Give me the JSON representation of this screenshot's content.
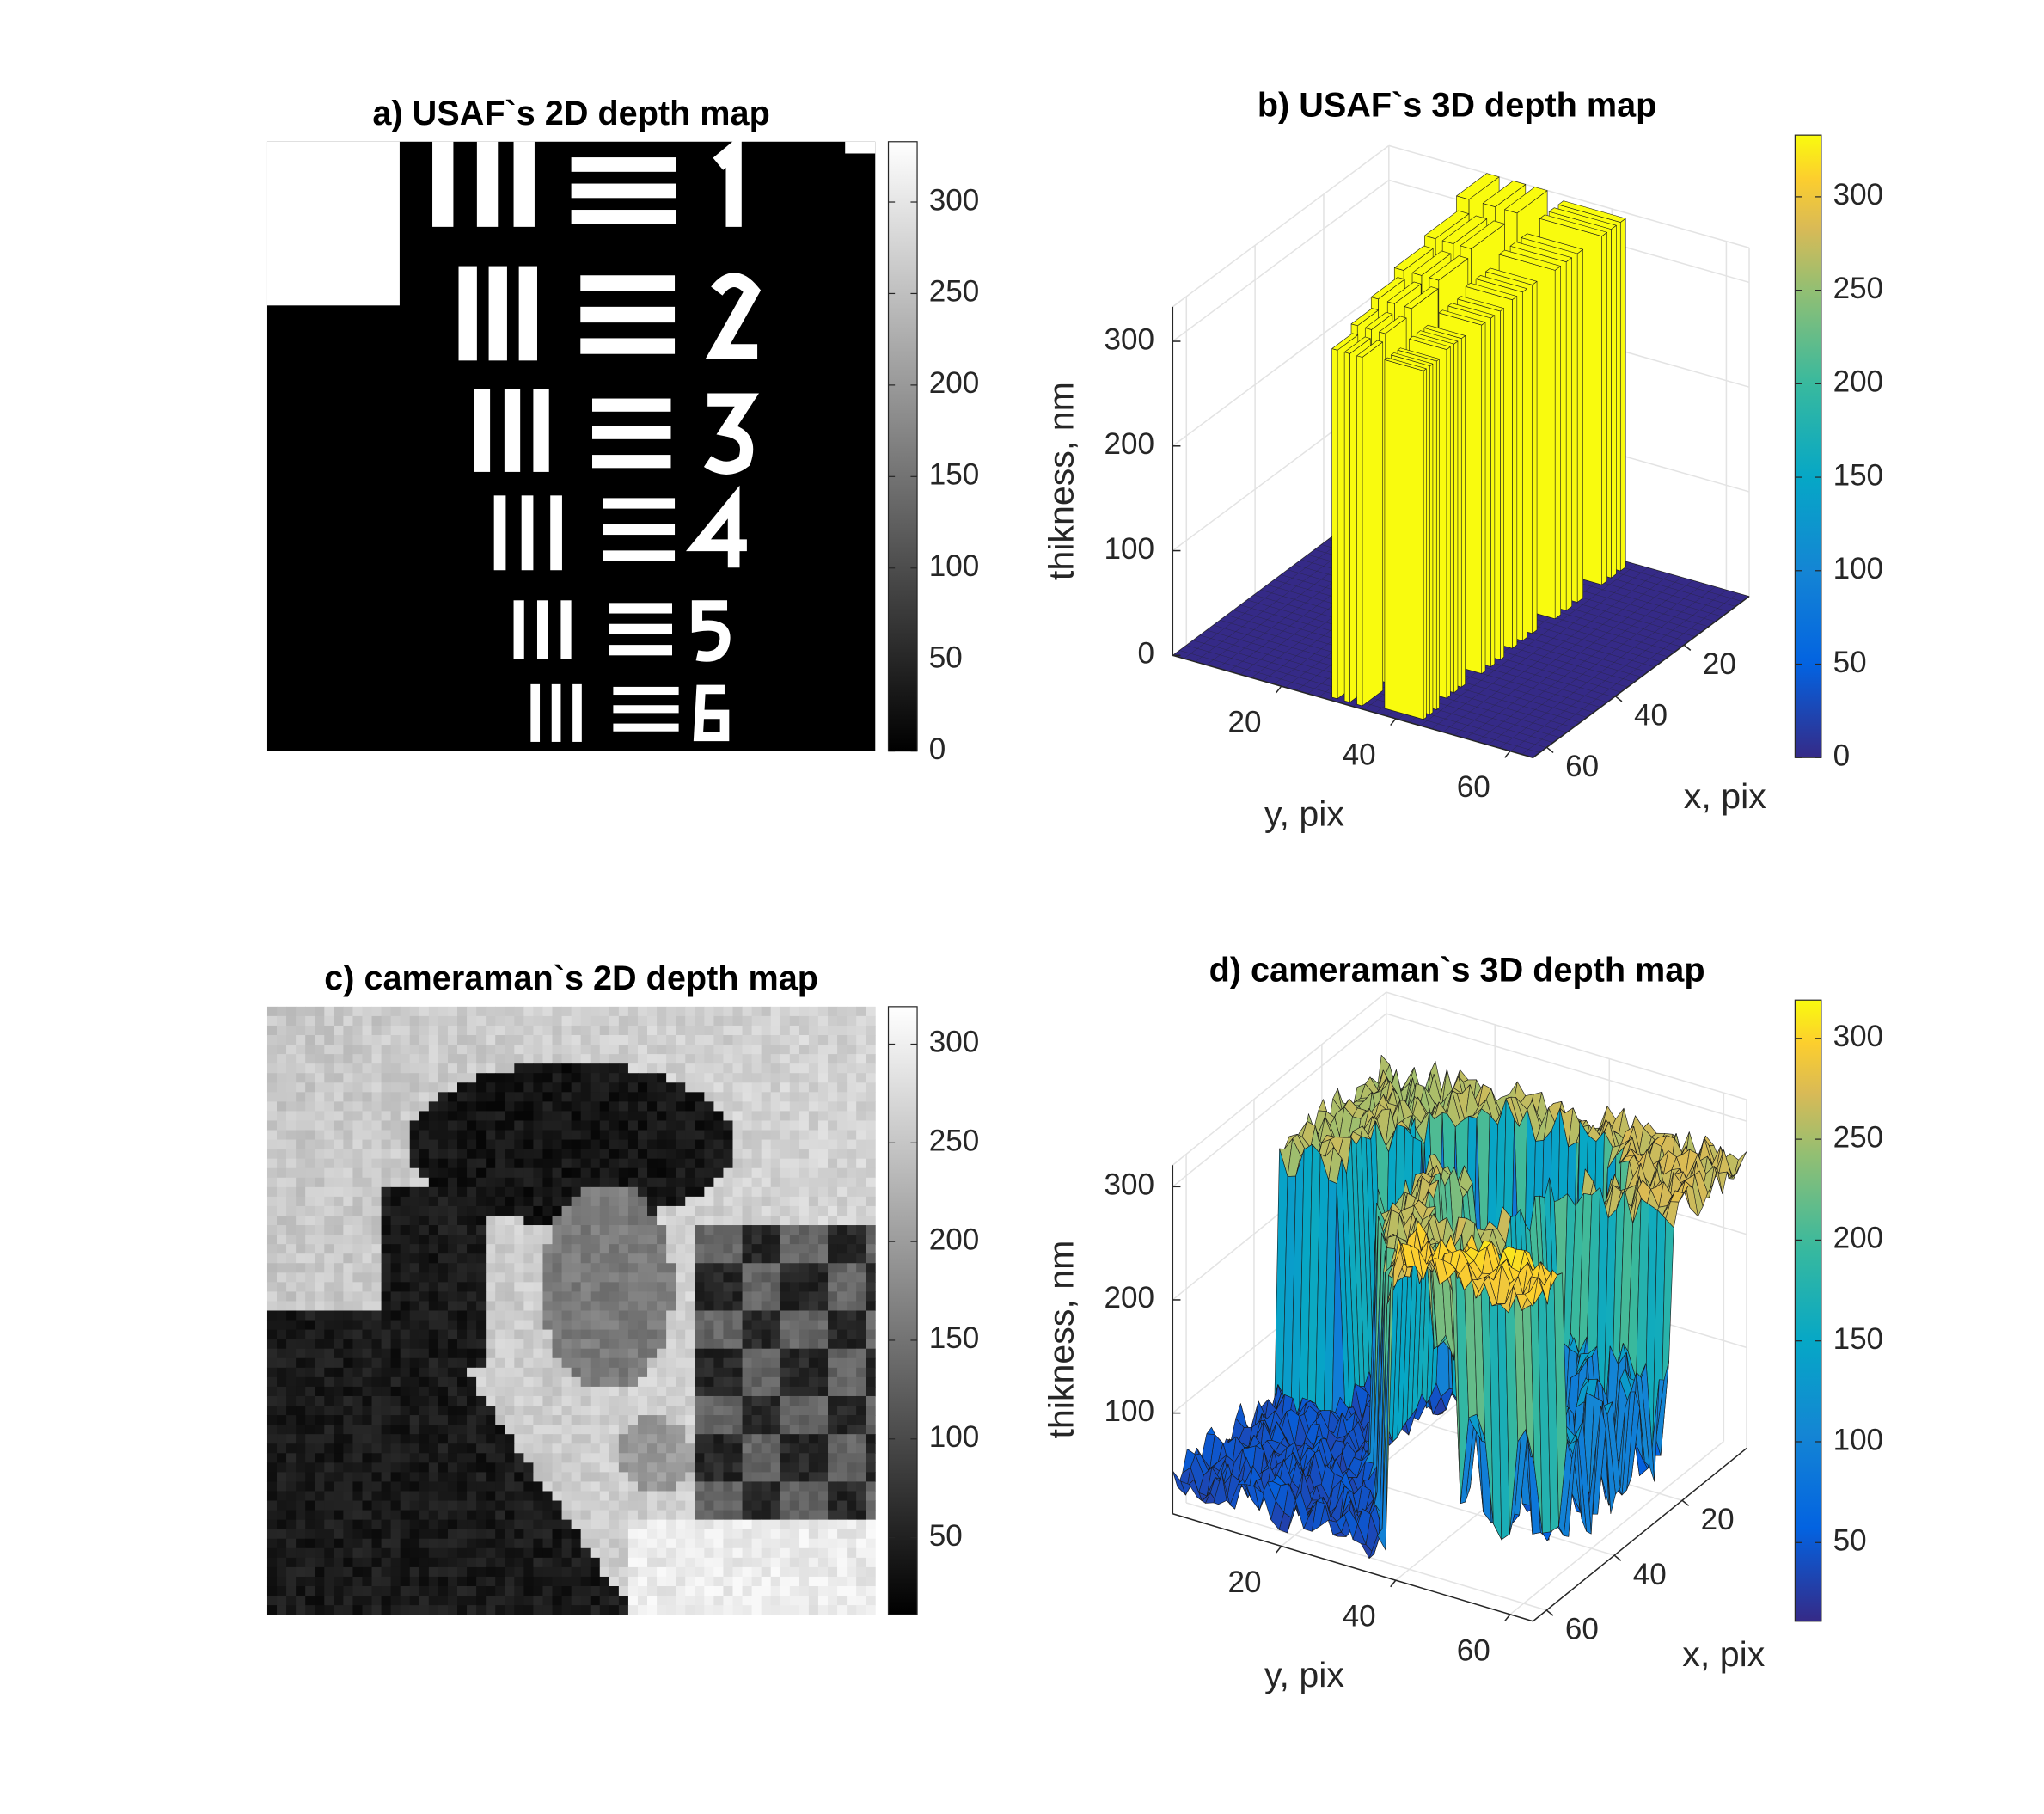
{
  "chart_data": [
    {
      "type": "heatmap",
      "title": "a) USAF`s 2D depth map",
      "colormap": "gray",
      "clim": [
        0,
        333
      ],
      "cticks": [
        0,
        50,
        100,
        150,
        200,
        250,
        300
      ]
    },
    {
      "type": "surface",
      "title": "b) USAF`s 3D depth map",
      "xlabel": "x, pix",
      "ylabel": "y, pix",
      "zlabel": "thikness, nm",
      "xlim": [
        1,
        64
      ],
      "ylim": [
        1,
        64
      ],
      "zlim": [
        0,
        333
      ],
      "xticks": [
        20,
        40,
        60
      ],
      "yticks": [
        20,
        40,
        60
      ],
      "zticks": [
        0,
        100,
        200,
        300
      ],
      "grid": true,
      "colormap": "parula",
      "clim": [
        0,
        333
      ],
      "cticks": [
        0,
        50,
        100,
        150,
        200,
        250,
        300
      ]
    },
    {
      "type": "heatmap",
      "title": "c) cameraman`s 2D depth map",
      "colormap": "gray",
      "clim": [
        11,
        319
      ],
      "cticks": [
        50,
        100,
        150,
        200,
        250,
        300
      ]
    },
    {
      "type": "surface",
      "title": "d) cameraman`s 3D depth map",
      "xlabel": "x, pix",
      "ylabel": "y, pix",
      "zlabel": "thikness, nm",
      "xlim": [
        1,
        64
      ],
      "ylim": [
        1,
        64
      ],
      "zlim": [
        11,
        319
      ],
      "xticks": [
        20,
        40,
        60
      ],
      "yticks": [
        20,
        40,
        60
      ],
      "zticks": [
        100,
        200,
        300
      ],
      "grid": true,
      "colormap": "parula",
      "clim": [
        11,
        319
      ],
      "cticks": [
        50,
        100,
        150,
        200,
        250,
        300
      ]
    }
  ]
}
